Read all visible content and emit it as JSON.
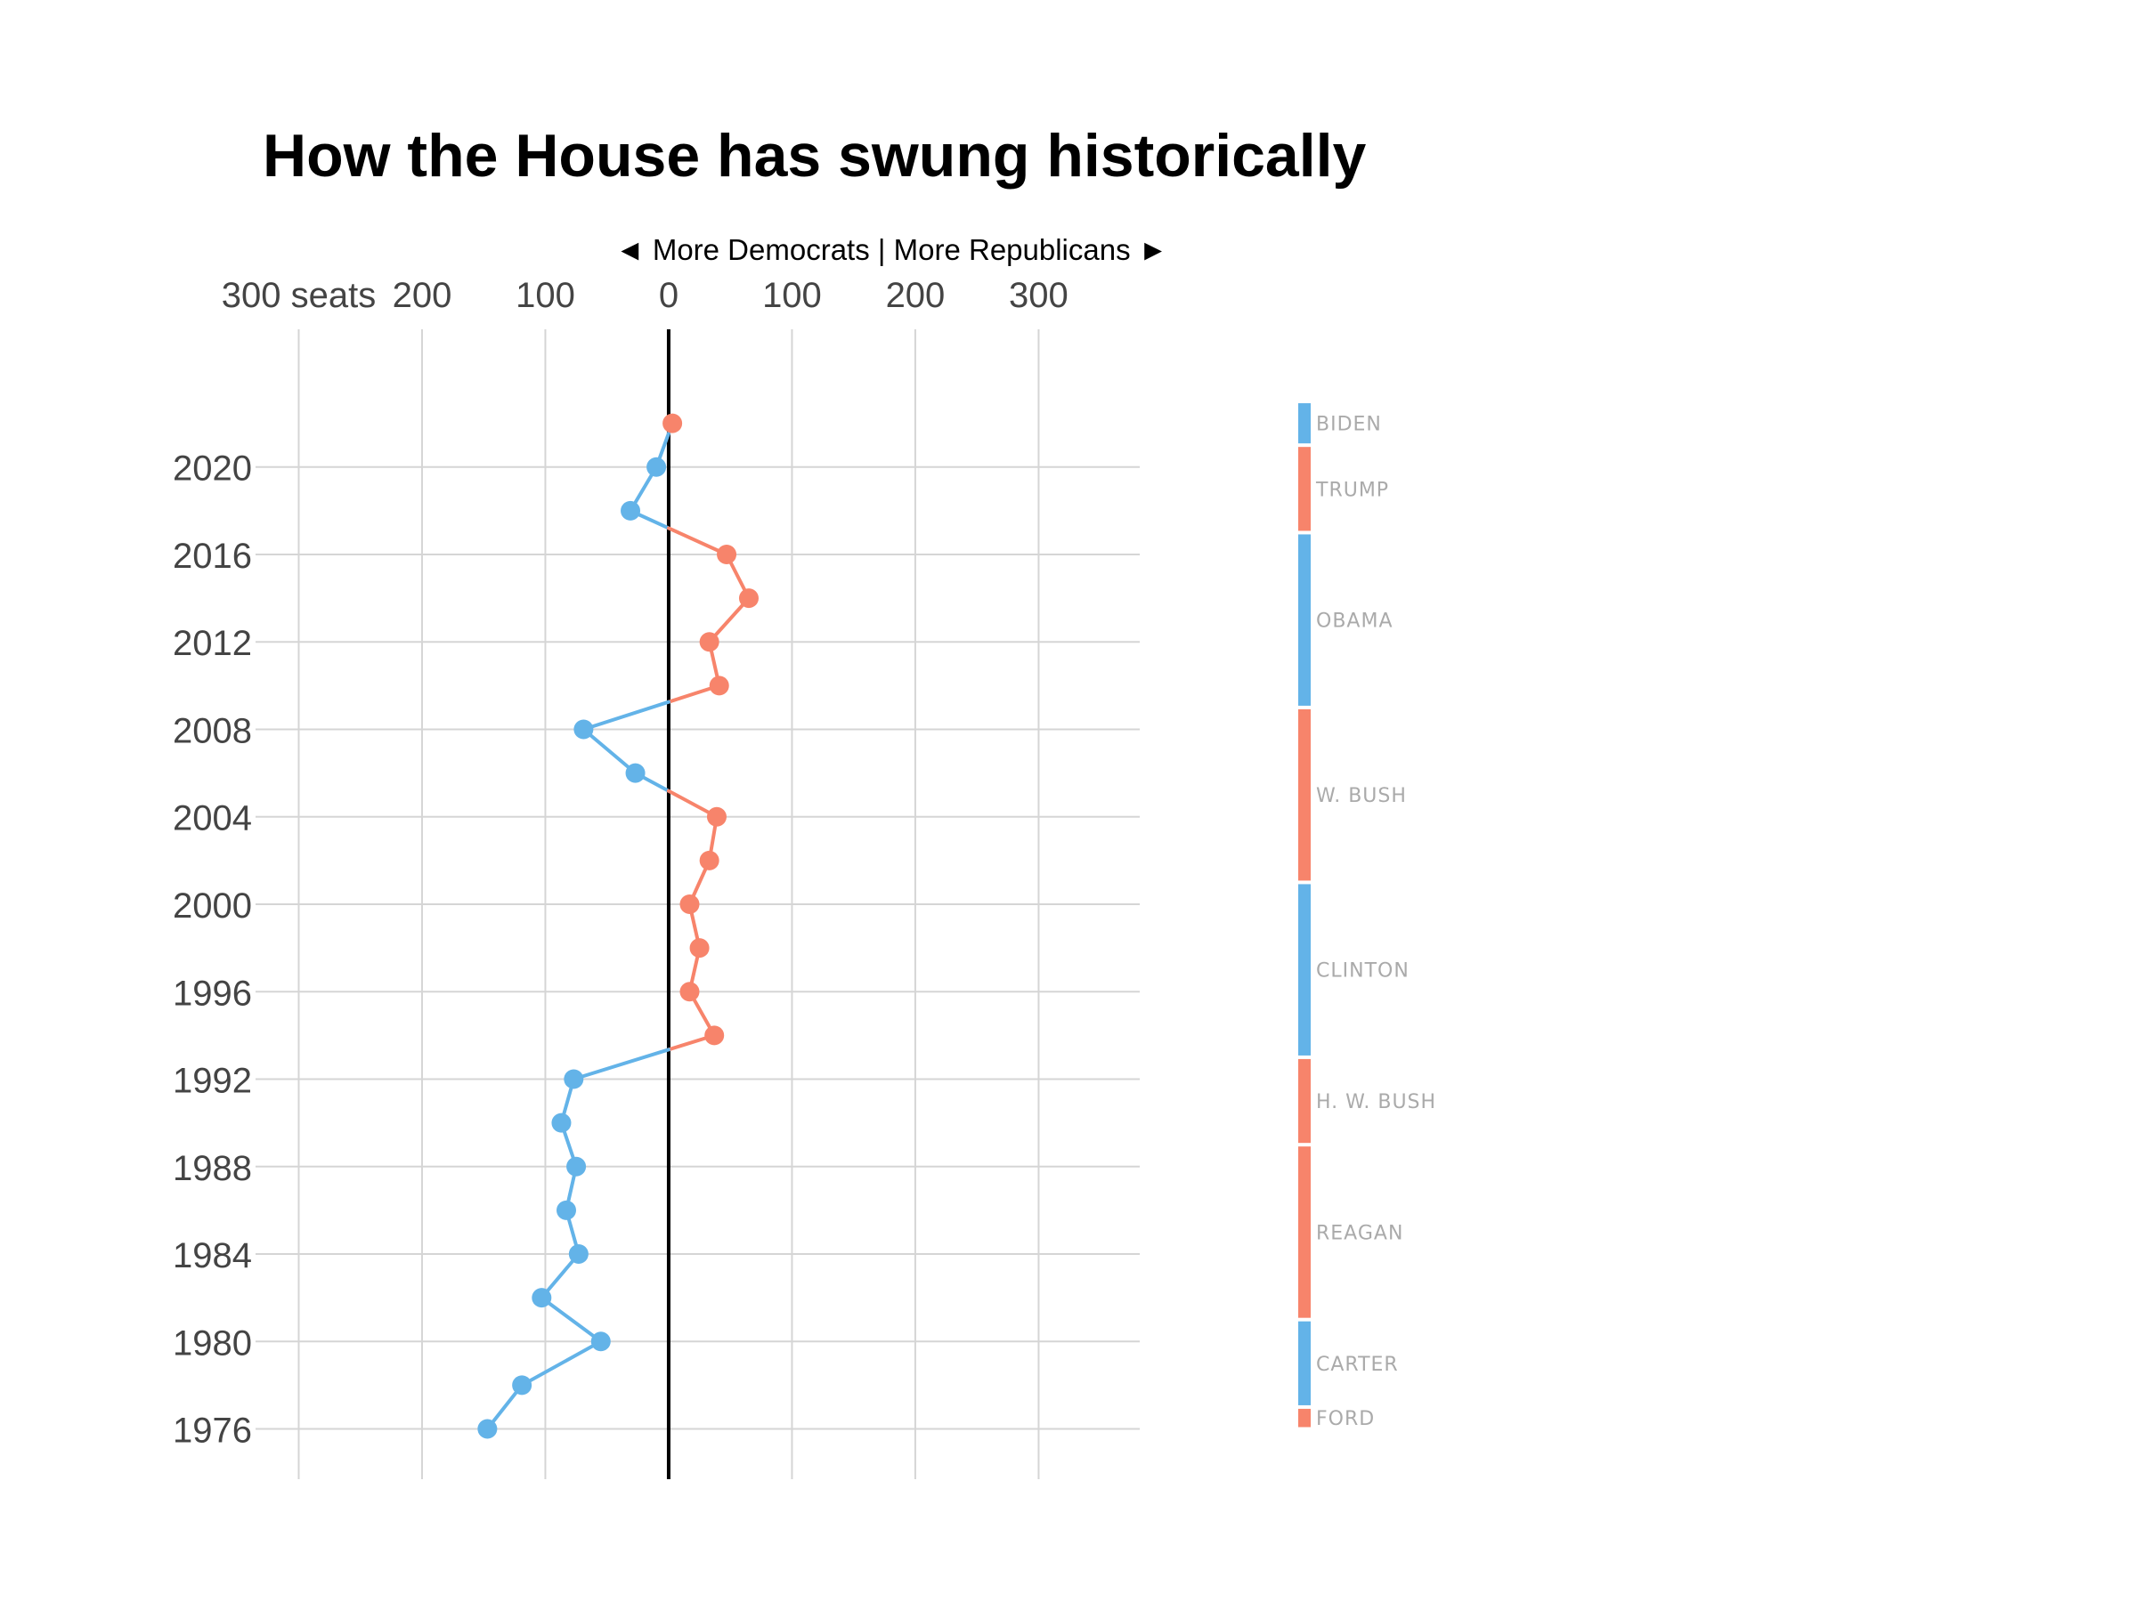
{
  "chart_data": {
    "type": "line",
    "title": "How the House has swung historically",
    "subtitle": "◄ More Democrats | More Republicans ►",
    "x_tick_labels": [
      "300 seats",
      "200",
      "100",
      "0",
      "100",
      "200",
      "300"
    ],
    "x_tick_values": [
      -300,
      -200,
      -100,
      0,
      100,
      200,
      300
    ],
    "xlim": [
      -335,
      382
    ],
    "ylim": [
      1973.7,
      2026.3
    ],
    "y_ticks": [
      1976,
      1980,
      1984,
      1988,
      1992,
      1996,
      2000,
      2004,
      2008,
      2012,
      2016,
      2020
    ],
    "grid": true,
    "points": [
      {
        "year": 2022,
        "value": 3
      },
      {
        "year": 2020,
        "value": -10
      },
      {
        "year": 2018,
        "value": -31
      },
      {
        "year": 2016,
        "value": 47
      },
      {
        "year": 2014,
        "value": 65
      },
      {
        "year": 2012,
        "value": 33
      },
      {
        "year": 2010,
        "value": 41
      },
      {
        "year": 2008,
        "value": -69
      },
      {
        "year": 2006,
        "value": -27
      },
      {
        "year": 2004,
        "value": 39
      },
      {
        "year": 2002,
        "value": 33
      },
      {
        "year": 2000,
        "value": 17
      },
      {
        "year": 1998,
        "value": 25
      },
      {
        "year": 1996,
        "value": 17
      },
      {
        "year": 1994,
        "value": 37
      },
      {
        "year": 1992,
        "value": -77
      },
      {
        "year": 1990,
        "value": -87
      },
      {
        "year": 1988,
        "value": -75
      },
      {
        "year": 1986,
        "value": -83
      },
      {
        "year": 1984,
        "value": -73
      },
      {
        "year": 1982,
        "value": -103
      },
      {
        "year": 1980,
        "value": -55
      },
      {
        "year": 1978,
        "value": -119
      },
      {
        "year": 1976,
        "value": -147
      }
    ],
    "colors": {
      "democrat": "#63b3e8",
      "republican": "#f7846b"
    },
    "presidents": [
      {
        "name": "BIDEN",
        "party": "democrat",
        "start": 2021,
        "end": 2023
      },
      {
        "name": "TRUMP",
        "party": "republican",
        "start": 2017,
        "end": 2021
      },
      {
        "name": "OBAMA",
        "party": "democrat",
        "start": 2009,
        "end": 2017
      },
      {
        "name": "W. BUSH",
        "party": "republican",
        "start": 2001,
        "end": 2009
      },
      {
        "name": "CLINTON",
        "party": "democrat",
        "start": 1993,
        "end": 2001
      },
      {
        "name": "H. W. BUSH",
        "party": "republican",
        "start": 1989,
        "end": 1993
      },
      {
        "name": "REAGAN",
        "party": "republican",
        "start": 1981,
        "end": 1989
      },
      {
        "name": "CARTER",
        "party": "democrat",
        "start": 1977,
        "end": 1981
      },
      {
        "name": "FORD",
        "party": "republican",
        "start": 1976,
        "end": 1977
      }
    ]
  }
}
